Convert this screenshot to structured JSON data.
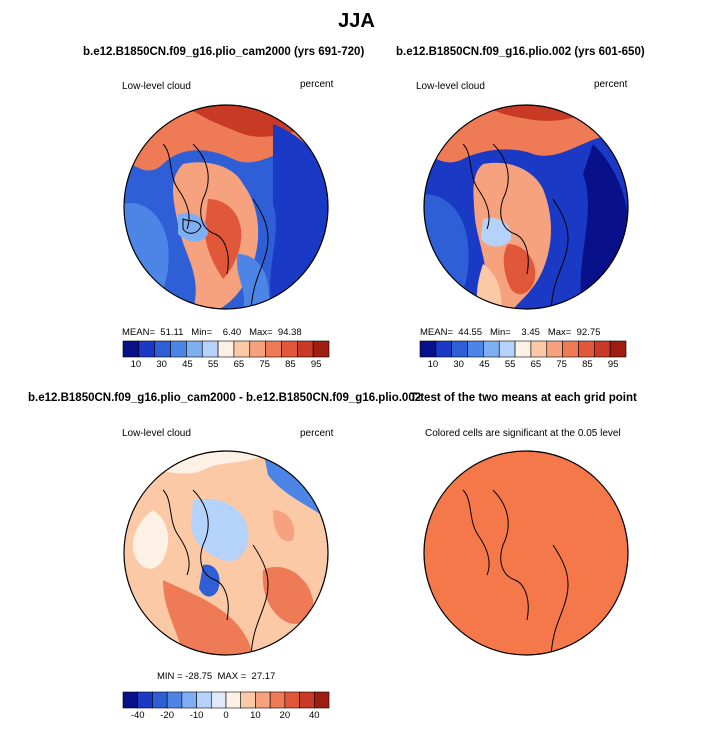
{
  "main_title": "JJA",
  "chart_data": [
    {
      "type": "heatmap",
      "projection": "north-polar-stereographic",
      "title": "b.e12.B1850CN.f09_g16.plio_cam2000 (yrs 691-720)",
      "left_label": "Low-level cloud",
      "right_label": "percent",
      "stats": {
        "mean_label": "MEAN=",
        "mean": "51.11",
        "min_label": "Min=",
        "min": "6.40",
        "max_label": "Max=",
        "max": "94.38"
      },
      "colorbar": {
        "colors": [
          "#08108a",
          "#1a39c4",
          "#2e5fd6",
          "#4c85e6",
          "#80aef2",
          "#b5d2fa",
          "#fdf0e4",
          "#fbc9a6",
          "#f6a27f",
          "#ee7b55",
          "#e0573a",
          "#c83a26",
          "#9e1c10"
        ],
        "tick_labels": [
          "10",
          "30",
          "45",
          "55",
          "65",
          "75",
          "85",
          "95"
        ],
        "tick_positions": [
          1,
          2,
          3,
          4,
          5,
          6,
          7,
          8,
          9,
          10,
          11,
          12
        ],
        "shown_ticks": [
          1,
          3,
          5,
          7,
          8,
          10,
          12,
          13
        ]
      }
    },
    {
      "type": "heatmap",
      "projection": "north-polar-stereographic",
      "title": "b.e12.B1850CN.f09_g16.plio.002 (yrs 601-650)",
      "left_label": "Low-level cloud",
      "right_label": "percent",
      "stats": {
        "mean_label": "MEAN=",
        "mean": "44.55",
        "min_label": "Min=",
        "min": "3.45",
        "max_label": "Max=",
        "max": "92.75"
      },
      "colorbar": {
        "colors": [
          "#08108a",
          "#1a39c4",
          "#2e5fd6",
          "#4c85e6",
          "#80aef2",
          "#b5d2fa",
          "#fdf0e4",
          "#fbc9a6",
          "#f6a27f",
          "#ee7b55",
          "#e0573a",
          "#c83a26",
          "#9e1c10"
        ],
        "tick_labels": [
          "10",
          "30",
          "45",
          "55",
          "65",
          "75",
          "85",
          "95"
        ]
      }
    },
    {
      "type": "heatmap",
      "projection": "north-polar-stereographic",
      "title": "b.e12.B1850CN.f09_g16.plio_cam2000 - b.e12.B1850CN.f09_g16.plio.002",
      "left_label": "Low-level cloud",
      "right_label": "percent",
      "stats": {
        "min_label": "MIN =",
        "min": "-28.75",
        "max_label": "MAX =",
        "max": "27.17"
      },
      "colorbar": {
        "colors": [
          "#08108a",
          "#1a39c4",
          "#2e5fd6",
          "#4c85e6",
          "#80aef2",
          "#b5d2fa",
          "#dfe9fb",
          "#fdf0e4",
          "#fbc9a6",
          "#f6a27f",
          "#ee7b55",
          "#e0573a",
          "#c83a26",
          "#9e1c10"
        ],
        "tick_labels": [
          "-40",
          "-20",
          "-10",
          "0",
          "10",
          "20",
          "40"
        ]
      }
    },
    {
      "type": "heatmap",
      "projection": "north-polar-stereographic",
      "title": "T-test of the two means at each grid point",
      "subtitle": "Colored cells are significant at the 0.05 level",
      "fill": "#f4784a"
    }
  ]
}
